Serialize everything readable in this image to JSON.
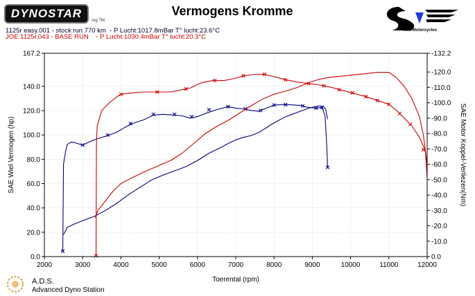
{
  "header": {
    "brand": "DYNOSTAR",
    "brand_reg": "reg TM",
    "title": "Vermogens Kromme",
    "run1_label": "1125r easy.001 - stock run 770 km  - P Lucht:1017.8mBar T° lucht:23.6°C",
    "run2_label": "JOE 1125r.043 - BASE RUN    - P Lucht:1030.4mBar T° lucht:20.3°C",
    "partner_logo_text": "Twin Motorcycles"
  },
  "footer": {
    "company": "A.D.S.",
    "company_full": "Advanced Dyno Station"
  },
  "colors": {
    "run1": "#000080",
    "run2": "#cc0000",
    "plot_border": "#000000"
  },
  "chart_data": {
    "type": "line",
    "title": "Vermogens Kromme",
    "xlabel": "Toerental (rpm)",
    "ylabel": "SAE Wiel Vermogen (hp)",
    "y2label": "SAE Motor Koppel-Verliezen(Nm)",
    "xlim": [
      2000,
      12000
    ],
    "ylim": [
      0,
      167.2
    ],
    "y2lim": [
      0,
      132.2
    ],
    "x_ticks": [
      2000,
      3000,
      4000,
      5000,
      6000,
      7000,
      8000,
      9000,
      10000,
      11000,
      12000
    ],
    "y_ticks": [
      "0.0",
      "20.0",
      "40.0",
      "60.0",
      "80.0",
      "100.0",
      "120.0",
      "140.0",
      "167.2"
    ],
    "y_tick_values": [
      0,
      20,
      40,
      60,
      80,
      100,
      120,
      140,
      167.2
    ],
    "y2_ticks": [
      "0.0",
      "-10.0",
      "-20.0",
      "-30.0",
      "-40.0",
      "-50.0",
      "-60.0",
      "-70.0",
      "-80.0",
      "-90.0",
      "-100.0",
      "-110.0",
      "-120.0",
      "-132.2"
    ],
    "y2_tick_values": [
      0,
      10,
      20,
      30,
      40,
      50,
      60,
      70,
      80,
      90,
      100,
      110,
      120,
      132.2
    ],
    "grid": true,
    "series": [
      {
        "id": "run1_power",
        "color": "#000080",
        "axis": "left",
        "markers": false,
        "points": [
          [
            2500,
            18
          ],
          [
            2600,
            24
          ],
          [
            2800,
            27
          ],
          [
            3000,
            29.5
          ],
          [
            3300,
            33
          ],
          [
            3600,
            38
          ],
          [
            3900,
            44
          ],
          [
            4200,
            51
          ],
          [
            4500,
            57
          ],
          [
            4800,
            63
          ],
          [
            5100,
            67
          ],
          [
            5400,
            70.5
          ],
          [
            5700,
            74
          ],
          [
            6000,
            79
          ],
          [
            6300,
            85
          ],
          [
            6600,
            89.5
          ],
          [
            6800,
            93
          ],
          [
            7000,
            96
          ],
          [
            7200,
            98
          ],
          [
            7400,
            99.5
          ],
          [
            7600,
            102
          ],
          [
            7800,
            106
          ],
          [
            8000,
            110
          ],
          [
            8300,
            115
          ],
          [
            8600,
            118.5
          ],
          [
            8900,
            122
          ],
          [
            9100,
            123.5
          ],
          [
            9200,
            124
          ],
          [
            9300,
            123
          ],
          [
            9350,
            121
          ],
          [
            9400,
            113
          ]
        ]
      },
      {
        "id": "run1_torque",
        "color": "#000080",
        "axis": "right",
        "markers": true,
        "points": [
          [
            2480,
            3
          ],
          [
            2500,
            60
          ],
          [
            2550,
            68
          ],
          [
            2600,
            73
          ],
          [
            2700,
            74.5
          ],
          [
            2800,
            74
          ],
          [
            3000,
            72.5
          ],
          [
            3300,
            76
          ],
          [
            3500,
            77.5
          ],
          [
            3700,
            79
          ],
          [
            3900,
            81
          ],
          [
            4100,
            84
          ],
          [
            4300,
            86.5
          ],
          [
            4600,
            89
          ],
          [
            4850,
            92
          ],
          [
            5100,
            92.5
          ],
          [
            5400,
            92
          ],
          [
            5600,
            91.5
          ],
          [
            5800,
            90
          ],
          [
            6000,
            91
          ],
          [
            6200,
            93
          ],
          [
            6500,
            95.5
          ],
          [
            6800,
            97.5
          ],
          [
            7000,
            96.5
          ],
          [
            7200,
            96
          ],
          [
            7400,
            95
          ],
          [
            7600,
            94.5
          ],
          [
            7800,
            96.5
          ],
          [
            8000,
            98.5
          ],
          [
            8200,
            98.8
          ],
          [
            8400,
            98.8
          ],
          [
            8700,
            98.2
          ],
          [
            8900,
            97
          ],
          [
            9100,
            96.5
          ],
          [
            9250,
            97
          ],
          [
            9330,
            92
          ],
          [
            9360,
            80
          ],
          [
            9380,
            70
          ],
          [
            9400,
            58
          ]
        ],
        "marker_points": [
          [
            2480,
            3.5
          ],
          [
            3000,
            72.5
          ],
          [
            3650,
            79
          ],
          [
            4250,
            86.5
          ],
          [
            4850,
            92.5
          ],
          [
            5400,
            92.5
          ],
          [
            5850,
            91
          ],
          [
            6300,
            95.5
          ],
          [
            6800,
            97.5
          ],
          [
            7250,
            96
          ],
          [
            7650,
            95
          ],
          [
            8000,
            98.5
          ],
          [
            8300,
            98.8
          ],
          [
            8750,
            98
          ],
          [
            9100,
            96.5
          ],
          [
            9250,
            97
          ],
          [
            9400,
            58
          ]
        ]
      },
      {
        "id": "run2_power",
        "color": "#cc0000",
        "axis": "left",
        "markers": false,
        "points": [
          [
            3330,
            32
          ],
          [
            3400,
            38
          ],
          [
            3600,
            46
          ],
          [
            3800,
            54
          ],
          [
            4000,
            60
          ],
          [
            4300,
            65
          ],
          [
            4600,
            69.5
          ],
          [
            5000,
            75
          ],
          [
            5300,
            79
          ],
          [
            5600,
            85
          ],
          [
            5900,
            93
          ],
          [
            6200,
            101
          ],
          [
            6500,
            107
          ],
          [
            6800,
            112
          ],
          [
            7100,
            118
          ],
          [
            7400,
            124
          ],
          [
            7700,
            129.5
          ],
          [
            8000,
            133.5
          ],
          [
            8300,
            136
          ],
          [
            8600,
            139
          ],
          [
            8900,
            143
          ],
          [
            9200,
            146
          ],
          [
            9500,
            147.5
          ],
          [
            9800,
            148.5
          ],
          [
            10100,
            149.5
          ],
          [
            10400,
            150.5
          ],
          [
            10700,
            151.5
          ],
          [
            11000,
            151.5
          ],
          [
            11200,
            147
          ],
          [
            11400,
            140
          ],
          [
            11600,
            130
          ],
          [
            11800,
            115
          ],
          [
            11900,
            100
          ],
          [
            12000,
            76
          ]
        ]
      },
      {
        "id": "run2_torque",
        "color": "#cc0000",
        "axis": "right",
        "markers": true,
        "points": [
          [
            3350,
            0
          ],
          [
            3360,
            75
          ],
          [
            3380,
            85
          ],
          [
            3500,
            95
          ],
          [
            3700,
            100
          ],
          [
            3900,
            104
          ],
          [
            4000,
            105.5
          ],
          [
            4300,
            106.5
          ],
          [
            4600,
            107
          ],
          [
            5000,
            107
          ],
          [
            5300,
            107
          ],
          [
            5600,
            108.5
          ],
          [
            5800,
            109.5
          ],
          [
            6100,
            113
          ],
          [
            6400,
            114.5
          ],
          [
            6700,
            114.5
          ],
          [
            7000,
            116
          ],
          [
            7200,
            117.5
          ],
          [
            7500,
            118.5
          ],
          [
            7750,
            118.5
          ],
          [
            8000,
            117
          ],
          [
            8300,
            115
          ],
          [
            8600,
            113.5
          ],
          [
            8900,
            112.5
          ],
          [
            9200,
            111.5
          ],
          [
            9500,
            110
          ],
          [
            9800,
            108
          ],
          [
            10100,
            106
          ],
          [
            10400,
            104
          ],
          [
            10700,
            101.5
          ],
          [
            11000,
            99
          ],
          [
            11200,
            95
          ],
          [
            11400,
            90
          ],
          [
            11600,
            85
          ],
          [
            11800,
            77.5
          ],
          [
            11950,
            69
          ],
          [
            12000,
            52
          ]
        ],
        "marker_points": [
          [
            3350,
            0.5
          ],
          [
            4000,
            105.5
          ],
          [
            4950,
            107
          ],
          [
            5700,
            109
          ],
          [
            6450,
            114.5
          ],
          [
            7200,
            117.5
          ],
          [
            7750,
            118.5
          ],
          [
            8300,
            115
          ],
          [
            8900,
            112.5
          ],
          [
            9300,
            111
          ],
          [
            9700,
            108.5
          ],
          [
            10050,
            106.5
          ],
          [
            10400,
            104
          ],
          [
            10700,
            101.5
          ],
          [
            11000,
            99
          ],
          [
            11280,
            93
          ],
          [
            11560,
            86
          ],
          [
            11900,
            69.5
          ]
        ]
      }
    ]
  }
}
